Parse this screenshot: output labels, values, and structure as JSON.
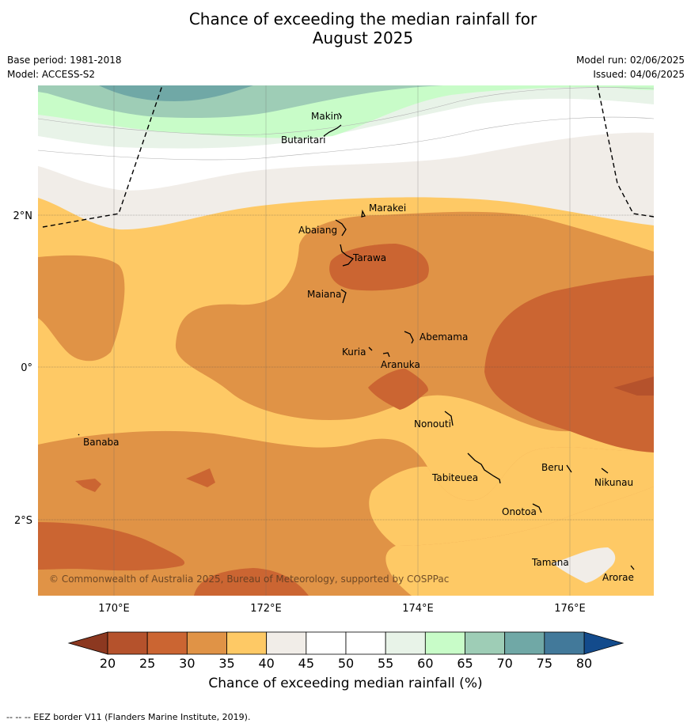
{
  "title_line1": "Chance of exceeding the median rainfall for",
  "title_line2": "August 2025",
  "meta": {
    "base_period": "Base period: 1981-2018",
    "model": "Model: ACCESS-S2",
    "model_run": "Model run: 02/06/2025",
    "issued": "Issued: 04/06/2025"
  },
  "lat_labels": [
    "2°N",
    "0°",
    "2°S"
  ],
  "lon_labels": [
    "170°E",
    "172°E",
    "174°E",
    "176°E"
  ],
  "places": [
    "Makin",
    "Butaritari",
    "Marakei",
    "Abaiang",
    "Tarawa",
    "Maiana",
    "Abemama",
    "Kuria",
    "Aranuka",
    "Nonouti",
    "Banaba",
    "Beru",
    "Tabiteuea",
    "Nikunau",
    "Onotoa",
    "Tamana",
    "Arorae"
  ],
  "copyright": "© Commonwealth of Australia 2025, Bureau of Meteorology, supported by COSPPac",
  "colorbar": {
    "ticks": [
      "20",
      "25",
      "30",
      "35",
      "40",
      "45",
      "50",
      "55",
      "60",
      "65",
      "70",
      "75",
      "80"
    ],
    "colors": [
      "#b5522c",
      "#cb6532",
      "#e09346",
      "#fec965",
      "#f1ede8",
      "#ffffff",
      "#ffffff",
      "#e8f3e8",
      "#c8fcc8",
      "#9ecdb6",
      "#70a8a6",
      "#42799a"
    ],
    "under_color": "#8c3820",
    "over_color": "#134b8c",
    "label": "Chance of exceeding median rainfall (%)"
  },
  "footnote": "--  --  -- EEZ border V11 (Flanders Marine Institute, 2019)."
}
